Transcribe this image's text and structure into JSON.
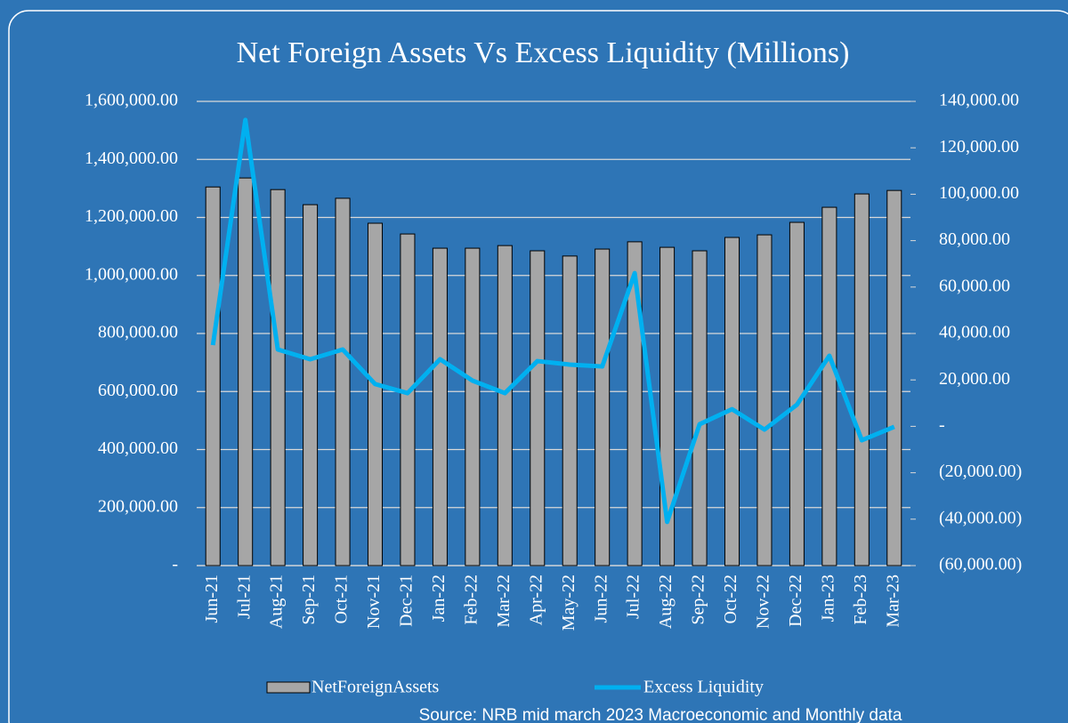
{
  "chart_data": {
    "type": "bar-line",
    "title": "Net Foreign Assets Vs Excess Liquidity (Millions)",
    "source": "Source: NRB mid march 2023 Macroeconomic and Monthly data",
    "categories": [
      "Jun-21",
      "Jul-21",
      "Aug-21",
      "Sep-21",
      "Oct-21",
      "Nov-21",
      "Dec-21",
      "Jan-22",
      "Feb-22",
      "Mar-22",
      "Apr-22",
      "May-22",
      "Jun-22",
      "Jul-22",
      "Aug-22",
      "Sep-22",
      "Oct-22",
      "Nov-22",
      "Dec-22",
      "Jan-23",
      "Feb-23",
      "Mar-23"
    ],
    "series": [
      {
        "name": "NetForeignAssets",
        "type": "bar",
        "color": "#a6a6a6",
        "values": [
          1305000,
          1336000,
          1296000,
          1244000,
          1266000,
          1180000,
          1143000,
          1094000,
          1094000,
          1103000,
          1085000,
          1067000,
          1091000,
          1116000,
          1097000,
          1085000,
          1131000,
          1140000,
          1183000,
          1235000,
          1281000,
          1293000
        ]
      },
      {
        "name": "Excess Liquidity",
        "type": "line",
        "axis": "y2",
        "color": "#00b0f0",
        "values": [
          35000,
          132000,
          33100,
          28900,
          33100,
          18200,
          14300,
          28900,
          19700,
          14300,
          28100,
          26600,
          25800,
          66000,
          -41200,
          900,
          7400,
          -1400,
          9300,
          30400,
          -6000,
          -200
        ]
      }
    ],
    "ylim": [
      0,
      1600000
    ],
    "yticks": [
      {
        "value": 0,
        "label": "-"
      },
      {
        "value": 200000,
        "label": "200,000.00"
      },
      {
        "value": 400000,
        "label": "400,000.00"
      },
      {
        "value": 600000,
        "label": "600,000.00"
      },
      {
        "value": 800000,
        "label": "800,000.00"
      },
      {
        "value": 1000000,
        "label": "1,000,000.00"
      },
      {
        "value": 1200000,
        "label": "1,200,000.00"
      },
      {
        "value": 1400000,
        "label": "1,400,000.00"
      },
      {
        "value": 1600000,
        "label": "1,600,000.00"
      }
    ],
    "y2lim": [
      -60000,
      140000
    ],
    "y2ticks": [
      {
        "value": -60000,
        "label": "(60,000.00)"
      },
      {
        "value": -40000,
        "label": "(40,000.00)"
      },
      {
        "value": -20000,
        "label": "(20,000.00)"
      },
      {
        "value": 0,
        "label": "-"
      },
      {
        "value": 20000,
        "label": "20,000.00"
      },
      {
        "value": 40000,
        "label": "40,000.00"
      },
      {
        "value": 60000,
        "label": "60,000.00"
      },
      {
        "value": 80000,
        "label": "80,000.00"
      },
      {
        "value": 100000,
        "label": "100,000.00"
      },
      {
        "value": 120000,
        "label": "120,000.00"
      },
      {
        "value": 140000,
        "label": "140,000.00"
      }
    ],
    "grid": true,
    "legend": "bottom"
  }
}
